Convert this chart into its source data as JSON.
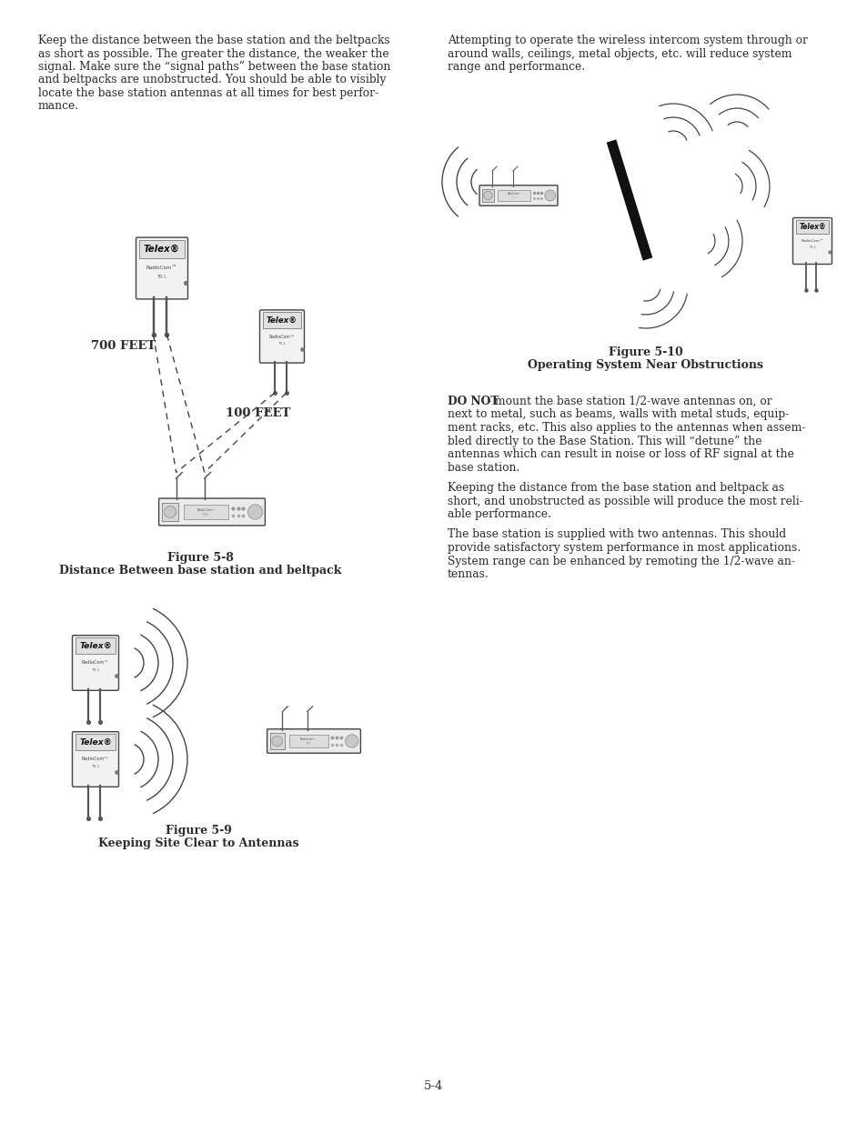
{
  "bg_color": "#ffffff",
  "page_number": "5-4",
  "text_color": "#2b2b2b",
  "label_700feet": "700 FEET",
  "label_100feet": "100 FEET",
  "fig8_caption_line1": "Figure 5-8",
  "fig8_caption_line2": "Distance Between base station and beltpack",
  "fig9_caption_line1": "Figure 5-9",
  "fig9_caption_line2": "Keeping Site Clear to Antennas",
  "fig10_caption_line1": "Figure 5-10",
  "fig10_caption_line2": "Operating System Near Obstructions",
  "left_para1_lines": [
    "Keep the distance between the base station and the beltpacks",
    "as short as possible. The greater the distance, the weaker the",
    "signal. Make sure the “signal paths” between the base station",
    "and beltpacks are unobstructed. You should be able to visibly",
    "locate the base station antennas at all times for best perfor-",
    "mance."
  ],
  "right_para1_lines": [
    "Attempting to operate the wireless intercom system through or",
    "around walls, ceilings, metal objects, etc. will reduce system",
    "range and performance."
  ],
  "right_para2_bold": "DO NOT",
  "right_para2_lines": [
    "DO NOT - mount the base station 1/2-wave antennas on, or",
    "next to metal, such as beams, walls with metal studs, equip-",
    "ment racks, etc. This also applies to the antennas when assem-",
    "bled directly to the Base Station. This will “detune” the",
    "antennas which can result in noise or loss of RF signal at the",
    "base station."
  ],
  "right_para3_lines": [
    "Keeping the distance from the base station and beltpack as",
    "short, and unobstructed as possible will produce the most reli-",
    "able performance."
  ],
  "right_para4_lines": [
    "The base station is supplied with two antennas. This should",
    "provide satisfactory system performance in most applications.",
    "System range can be enhanced by remoting the 1/2-wave an-",
    "tennas."
  ]
}
